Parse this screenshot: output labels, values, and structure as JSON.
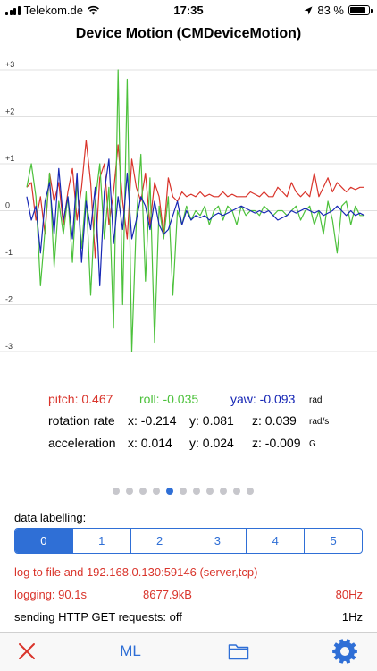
{
  "status_bar": {
    "carrier": "Telekom.de",
    "time": "17:35",
    "battery": "83 %",
    "battery_level": 0.83
  },
  "title": "Device Motion (CMDeviceMotion)",
  "chart_data": {
    "type": "line",
    "ylim": [
      -3,
      3
    ],
    "yticks": [
      "+3",
      "+2",
      "+1",
      "0",
      "-1",
      "-2",
      "-3"
    ],
    "grid": true,
    "series": [
      {
        "color": "#d9342b",
        "values": [
          0.5,
          0.6,
          -0.2,
          0.3,
          -0.5,
          0.8,
          0.2,
          0.6,
          -0.3,
          0.4,
          0.9,
          -0.2,
          0.5,
          1.5,
          0.6,
          -1.0,
          0.7,
          1.0,
          -0.3,
          0.4,
          1.4,
          0.2,
          -0.6,
          1.1,
          0.5,
          0.2,
          0.8,
          -0.3,
          0.6,
          0.3,
          -0.5,
          0.7,
          0.3,
          0.2,
          0.4,
          0.3,
          0.35,
          0.3,
          0.4,
          0.3,
          0.35,
          0.3,
          0.3,
          0.4,
          0.3,
          0.35,
          0.3,
          0.3,
          0.3,
          0.4,
          0.35,
          0.3,
          0.4,
          0.3,
          0.3,
          0.5,
          0.4,
          0.3,
          0.6,
          0.4,
          0.3,
          0.4,
          0.3,
          0.8,
          0.3,
          0.5,
          0.7,
          0.4,
          0.6,
          0.5,
          0.4,
          0.5,
          0.45,
          0.5,
          0.5
        ]
      },
      {
        "color": "#4cc13b",
        "values": [
          0.5,
          1.0,
          0.3,
          -1.6,
          -0.4,
          0.8,
          -1.2,
          0.2,
          -0.5,
          0.3,
          -1.1,
          0.6,
          -0.8,
          0.4,
          -1.8,
          0.2,
          1.0,
          -0.6,
          0.5,
          -2.5,
          3.0,
          -2.0,
          2.8,
          -3.0,
          -0.2,
          1.2,
          -1.5,
          0.7,
          -2.8,
          0.1,
          -0.6,
          0.3,
          -1.8,
          0.0,
          -0.3,
          0.1,
          -0.2,
          0.0,
          -0.1,
          0.1,
          -0.3,
          0.0,
          0.1,
          -0.2,
          0.1,
          0.0,
          -0.3,
          0.1,
          -0.1,
          0.0,
          0.0,
          -0.1,
          0.1,
          0.0,
          -0.1,
          0.0,
          0.0,
          -0.1,
          0.0,
          0.1,
          -0.2,
          0.0,
          0.1,
          -0.3,
          0.0,
          -0.5,
          0.2,
          -0.2,
          -0.9,
          0.1,
          0.2,
          -0.3,
          0.1,
          -0.1,
          -0.1
        ]
      },
      {
        "color": "#1727b5",
        "values": [
          0.3,
          -0.2,
          0.1,
          -0.9,
          0.2,
          0.6,
          -0.5,
          0.9,
          -0.2,
          0.3,
          -0.6,
          0.8,
          -1.1,
          0.2,
          -0.4,
          0.5,
          -1.6,
          0.4,
          1.1,
          -0.7,
          0.3,
          -0.4,
          0.8,
          -0.6,
          -0.2,
          0.3,
          0.1,
          -0.4,
          0.2,
          -0.3,
          -0.5,
          -0.4,
          -0.1,
          0.2,
          -0.3,
          0.0,
          -0.2,
          -0.1,
          -0.15,
          -0.1,
          -0.2,
          -0.1,
          -0.05,
          -0.1,
          -0.05,
          0.0,
          0.05,
          0.1,
          0.05,
          0.0,
          -0.05,
          0.0,
          -0.05,
          0.0,
          -0.1,
          -0.2,
          -0.15,
          -0.1,
          0.0,
          -0.05,
          0.0,
          0.05,
          0.0,
          -0.05,
          0.0,
          -0.1,
          -0.05,
          0.0,
          0.1,
          0.0,
          -0.1,
          0.0,
          -0.1,
          -0.05,
          -0.1
        ]
      }
    ]
  },
  "readouts": {
    "pitch": "pitch: 0.467",
    "roll": "roll: -0.035",
    "yaw": "yaw: -0.093",
    "attitude_unit": "rad",
    "rotation_label": "rotation rate",
    "rotation_x": "x: -0.214",
    "rotation_y": "y: 0.081",
    "rotation_z": "z: 0.039",
    "rotation_unit": "rad/s",
    "acceleration_label": "acceleration",
    "acceleration_x": "x: 0.014",
    "acceleration_y": "y: 0.024",
    "acceleration_z": "z: -0.009",
    "acceleration_unit": "G"
  },
  "pager": {
    "count": 11,
    "active_index": 4
  },
  "labelling": {
    "title": "data labelling:",
    "options": [
      "0",
      "1",
      "2",
      "3",
      "4",
      "5"
    ],
    "selected": "0"
  },
  "logging": {
    "destination": "log to file and 192.168.0.130:59146 (server,tcp)",
    "duration": "logging:  90.1s",
    "size": "8677.9kB",
    "rate": "80Hz",
    "http_label": "sending HTTP GET requests: off",
    "http_rate": "1Hz"
  },
  "tabbar": {
    "ml_label": "ML",
    "icons": [
      "close-icon",
      "folder-icon",
      "gear-icon"
    ]
  },
  "colors": {
    "accent": "#2f6fd6",
    "pitch": "#d9342b",
    "roll": "#4cc13b",
    "yaw": "#1727b5",
    "log_text": "#d9342b"
  }
}
